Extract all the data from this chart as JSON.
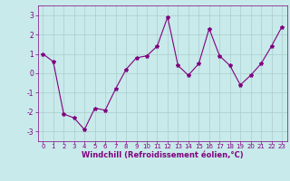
{
  "x": [
    0,
    1,
    2,
    3,
    4,
    5,
    6,
    7,
    8,
    9,
    10,
    11,
    12,
    13,
    14,
    15,
    16,
    17,
    18,
    19,
    20,
    21,
    22,
    23
  ],
  "y": [
    1.0,
    0.6,
    -2.1,
    -2.3,
    -2.9,
    -1.8,
    -1.9,
    -0.8,
    0.2,
    0.8,
    0.9,
    1.4,
    2.9,
    0.4,
    -0.1,
    0.5,
    2.3,
    0.9,
    0.4,
    -0.6,
    -0.1,
    0.5,
    1.4,
    2.4
  ],
  "line_color": "#800080",
  "marker": "*",
  "marker_size": 3,
  "bg_color": "#c8eaea",
  "grid_color": "#aacccc",
  "xlabel": "Windchill (Refroidissement éolien,°C)",
  "xlabel_color": "#800080",
  "tick_color": "#800080",
  "label_color": "#800080",
  "ylim": [
    -3.5,
    3.5
  ],
  "xlim": [
    -0.5,
    23.5
  ],
  "yticks": [
    -3,
    -2,
    -1,
    0,
    1,
    2,
    3
  ],
  "xticks": [
    0,
    1,
    2,
    3,
    4,
    5,
    6,
    7,
    8,
    9,
    10,
    11,
    12,
    13,
    14,
    15,
    16,
    17,
    18,
    19,
    20,
    21,
    22,
    23
  ],
  "xtick_labels": [
    "0",
    "1",
    "2",
    "3",
    "4",
    "5",
    "6",
    "7",
    "8",
    "9",
    "10",
    "11",
    "12",
    "13",
    "14",
    "15",
    "16",
    "17",
    "18",
    "19",
    "20",
    "21",
    "22",
    "23"
  ],
  "tick_fontsize": 5.0,
  "xlabel_fontsize": 6.0,
  "linewidth": 0.8
}
